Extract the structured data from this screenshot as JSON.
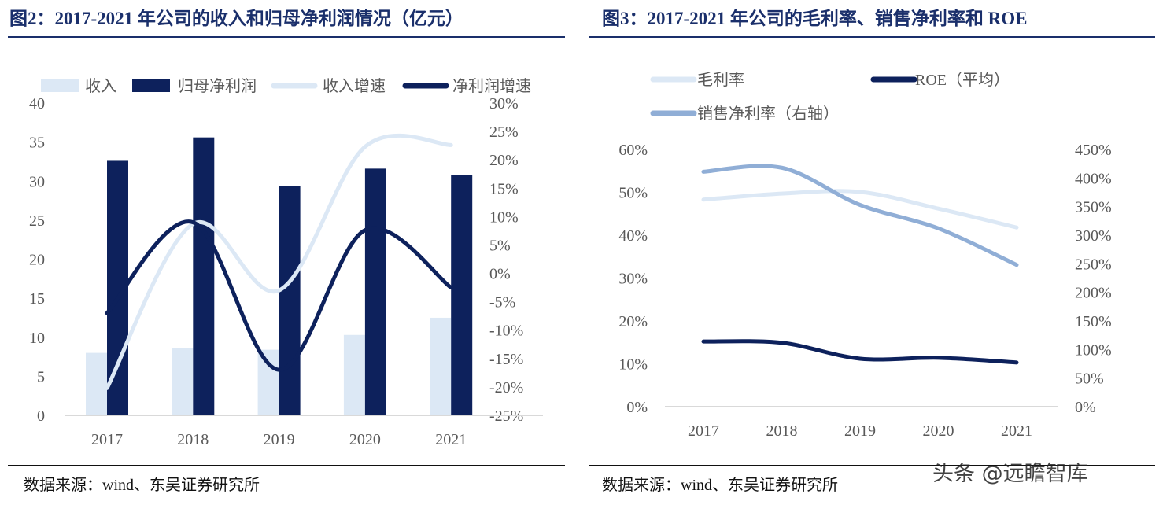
{
  "left": {
    "title": "图2：2017-2021 年公司的收入和归母净利润情况（亿元）",
    "source": "数据来源：wind、东吴证券研究所"
  },
  "right": {
    "title": "图3：2017-2021 年公司的毛利率、销售净利率和 ROE",
    "source": "数据来源：wind、东吴证券研究所"
  },
  "watermark": "头条 @远瞻智库",
  "colors": {
    "title": "#1a2f6b",
    "navy": "#0d215c",
    "light": "#dce8f5",
    "mid": "#90aed6"
  },
  "chart_data": [
    {
      "type": "bar",
      "categories": [
        "2017",
        "2018",
        "2019",
        "2020",
        "2021"
      ],
      "series": [
        {
          "name": "收入",
          "kind": "bar",
          "axis": "left",
          "color": "#dce8f5",
          "values": [
            8.0,
            8.6,
            8.4,
            10.3,
            12.5
          ]
        },
        {
          "name": "归母净利润",
          "kind": "bar",
          "axis": "left",
          "color": "#0d215c",
          "values": [
            32.6,
            35.6,
            29.4,
            31.6,
            30.8
          ]
        },
        {
          "name": "收入增速",
          "kind": "line",
          "axis": "right",
          "color": "#dce8f5",
          "values": [
            -20.2,
            8.7,
            -3.0,
            22.3,
            22.6
          ]
        },
        {
          "name": "净利润增速",
          "kind": "line",
          "axis": "right",
          "color": "#0d215c",
          "values": [
            -7.0,
            9.0,
            -17.0,
            7.6,
            -2.5
          ]
        }
      ],
      "y_left": {
        "range": [
          0,
          40
        ],
        "ticks": [
          "0",
          "5",
          "10",
          "15",
          "20",
          "25",
          "30",
          "35",
          "40"
        ]
      },
      "y_right": {
        "range": [
          -25,
          30
        ],
        "unit": "%",
        "ticks": [
          "-25%",
          "-20%",
          "-15%",
          "-10%",
          "-5%",
          "0%",
          "5%",
          "10%",
          "15%",
          "20%",
          "25%",
          "30%"
        ]
      },
      "grid": false,
      "legend": "top"
    },
    {
      "type": "line",
      "categories": [
        "2017",
        "2018",
        "2019",
        "2020",
        "2021"
      ],
      "series": [
        {
          "name": "毛利率",
          "axis": "left",
          "color": "#dce8f5",
          "values": [
            48.3,
            49.7,
            50.1,
            46.2,
            41.8
          ]
        },
        {
          "name": "ROE（平均）",
          "axis": "left",
          "color": "#0d215c",
          "values": [
            15.2,
            14.9,
            11.2,
            11.4,
            10.3
          ]
        },
        {
          "name": "销售净利率（右轴）",
          "axis": "right",
          "color": "#90aed6",
          "values": [
            411,
            418,
            353,
            312,
            248
          ]
        }
      ],
      "y_left": {
        "range": [
          0,
          60
        ],
        "unit": "%",
        "ticks": [
          "0%",
          "10%",
          "20%",
          "30%",
          "40%",
          "50%",
          "60%"
        ]
      },
      "y_right": {
        "range": [
          0,
          450
        ],
        "unit": "%",
        "ticks": [
          "0%",
          "50%",
          "100%",
          "150%",
          "200%",
          "250%",
          "300%",
          "350%",
          "400%",
          "450%"
        ]
      },
      "grid": false,
      "legend": "top"
    }
  ]
}
